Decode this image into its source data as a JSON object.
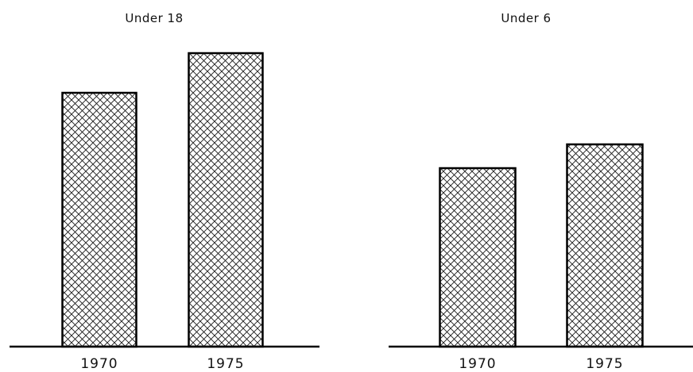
{
  "chart_data": [
    {
      "type": "bar",
      "title": "Under 18",
      "categories": [
        "1970",
        "1975"
      ],
      "values": [
        320,
        370
      ],
      "xlabel": "",
      "ylabel": "",
      "ylim": [
        0,
        400
      ],
      "grid": false,
      "colors": {
        "bar_fill": "#ffffff",
        "hatch": "#1a1a1a",
        "outline": "#000000"
      }
    },
    {
      "type": "bar",
      "title": "Under 6",
      "categories": [
        "1970",
        "1975"
      ],
      "values": [
        225,
        255
      ],
      "xlabel": "",
      "ylabel": "",
      "ylim": [
        0,
        400
      ],
      "grid": false,
      "colors": {
        "bar_fill": "#ffffff",
        "hatch": "#1a1a1a",
        "outline": "#000000"
      }
    }
  ]
}
